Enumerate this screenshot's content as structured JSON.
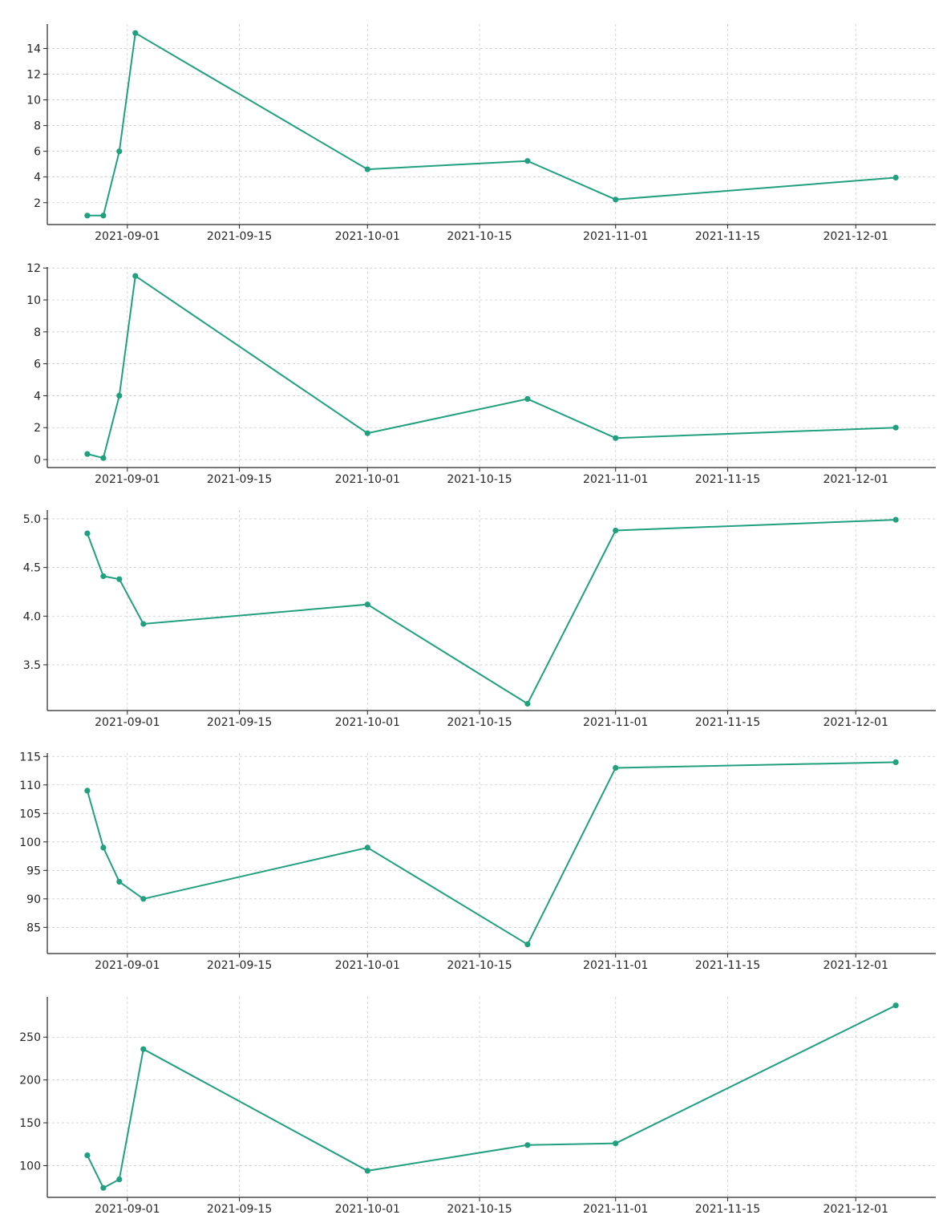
{
  "style": {
    "line_color": "#21a07f",
    "grid_color": "#cccccc",
    "axis_color": "#262626"
  },
  "shared_x": {
    "type": "date",
    "ticks": [
      "2021-09-01",
      "2021-09-15",
      "2021-10-01",
      "2021-10-15",
      "2021-11-01",
      "2021-11-15",
      "2021-12-01"
    ]
  },
  "chart_data": [
    {
      "type": "line",
      "title": "",
      "xlabel": "",
      "ylabel": "",
      "grid": true,
      "x": [
        "2021-08-27",
        "2021-08-29",
        "2021-08-31",
        "2021-09-02",
        "2021-10-01",
        "2021-10-21",
        "2021-11-01",
        "2021-12-06"
      ],
      "xlim": [
        "2021-08-22",
        "2021-12-11"
      ],
      "ylim": [
        0.3,
        15.9
      ],
      "yticks": [
        2,
        4,
        6,
        8,
        10,
        12,
        14
      ],
      "ytick_labels": [
        "2",
        "4",
        "6",
        "8",
        "10",
        "12",
        "14"
      ],
      "series": [
        {
          "values": [
            1.0,
            1.0,
            6.0,
            15.2,
            4.6,
            5.25,
            2.25,
            3.95
          ]
        }
      ]
    },
    {
      "type": "line",
      "title": "",
      "xlabel": "",
      "ylabel": "",
      "grid": true,
      "x": [
        "2021-08-27",
        "2021-08-29",
        "2021-08-31",
        "2021-09-02",
        "2021-10-01",
        "2021-10-21",
        "2021-11-01",
        "2021-12-06"
      ],
      "xlim": [
        "2021-08-22",
        "2021-12-11"
      ],
      "ylim": [
        -0.5,
        12.06
      ],
      "yticks": [
        0,
        2,
        4,
        6,
        8,
        10,
        12
      ],
      "ytick_labels": [
        "0",
        "2",
        "4",
        "6",
        "8",
        "10",
        "12"
      ],
      "series": [
        {
          "values": [
            0.35,
            0.1,
            4.0,
            11.5,
            1.65,
            3.8,
            1.35,
            2.0
          ]
        }
      ]
    },
    {
      "type": "line",
      "title": "",
      "xlabel": "",
      "ylabel": "",
      "grid": true,
      "x": [
        "2021-08-27",
        "2021-08-29",
        "2021-08-31",
        "2021-09-03",
        "2021-10-01",
        "2021-10-21",
        "2021-11-01",
        "2021-12-06"
      ],
      "xlim": [
        "2021-08-22",
        "2021-12-11"
      ],
      "ylim": [
        3.03,
        5.09
      ],
      "yticks": [
        3.5,
        4.0,
        4.5,
        5.0
      ],
      "ytick_labels": [
        "3.5",
        "4.0",
        "4.5",
        "5.0"
      ],
      "series": [
        {
          "values": [
            4.85,
            4.41,
            4.38,
            3.92,
            4.12,
            3.1,
            4.88,
            4.99
          ]
        }
      ]
    },
    {
      "type": "line",
      "title": "",
      "xlabel": "",
      "ylabel": "",
      "grid": true,
      "x": [
        "2021-08-27",
        "2021-08-29",
        "2021-08-31",
        "2021-09-03",
        "2021-10-01",
        "2021-10-21",
        "2021-11-01",
        "2021-12-06"
      ],
      "xlim": [
        "2021-08-22",
        "2021-12-11"
      ],
      "ylim": [
        80.4,
        115.6
      ],
      "yticks": [
        85,
        90,
        95,
        100,
        105,
        110,
        115
      ],
      "ytick_labels": [
        "85",
        "90",
        "95",
        "100",
        "105",
        "110",
        "115"
      ],
      "series": [
        {
          "values": [
            109,
            99,
            93,
            90,
            99,
            82,
            113,
            114
          ]
        }
      ]
    },
    {
      "type": "line",
      "title": "",
      "xlabel": "",
      "ylabel": "",
      "grid": true,
      "x": [
        "2021-08-27",
        "2021-08-29",
        "2021-08-31",
        "2021-09-03",
        "2021-10-01",
        "2021-10-21",
        "2021-11-01",
        "2021-12-06"
      ],
      "xlim": [
        "2021-08-22",
        "2021-12-11"
      ],
      "ylim": [
        63,
        297
      ],
      "yticks": [
        100,
        150,
        200,
        250
      ],
      "ytick_labels": [
        "100",
        "150",
        "200",
        "250"
      ],
      "series": [
        {
          "values": [
            112,
            74,
            84,
            236,
            94,
            124,
            126,
            287
          ]
        }
      ]
    }
  ]
}
